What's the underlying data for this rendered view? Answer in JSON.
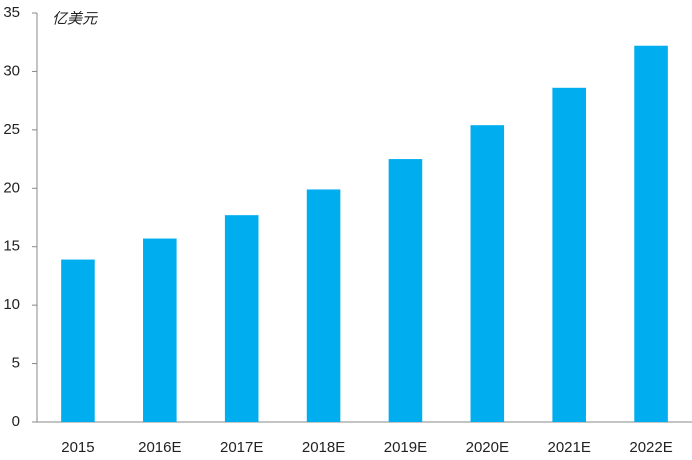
{
  "chart_data": {
    "type": "bar",
    "y_label": "亿美元",
    "categories": [
      "2015",
      "2016E",
      "2017E",
      "2018E",
      "2019E",
      "2020E",
      "2021E",
      "2022E"
    ],
    "values": [
      13.9,
      15.7,
      17.7,
      19.9,
      22.5,
      25.4,
      28.6,
      32.2
    ],
    "color": "#00aeef",
    "ylim": [
      0,
      35
    ],
    "yticks": [
      0,
      5,
      10,
      15,
      20,
      25,
      30,
      35
    ],
    "grid": false
  }
}
